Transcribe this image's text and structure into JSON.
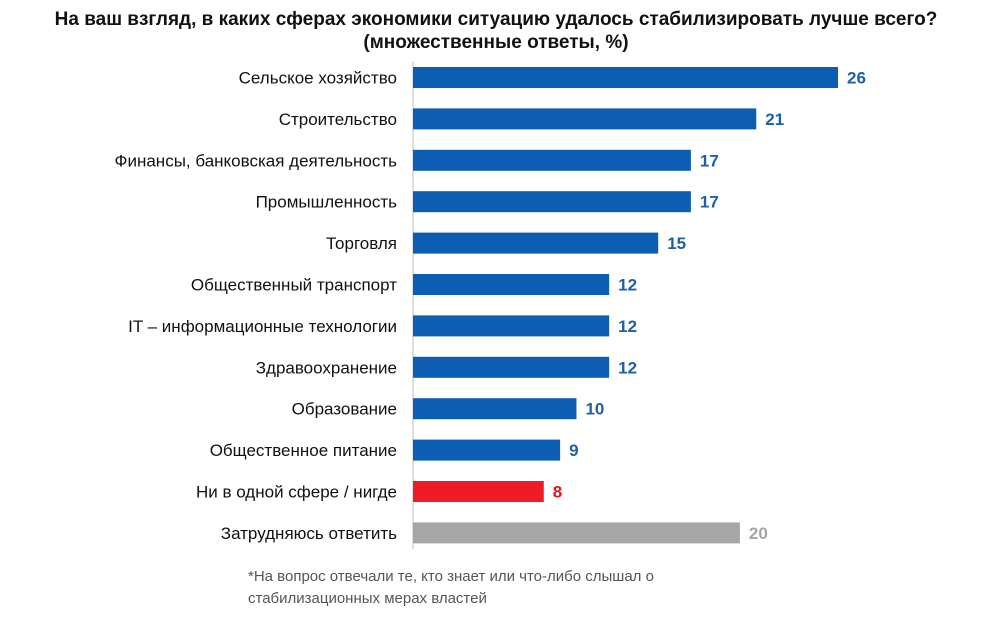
{
  "chart_data": {
    "type": "bar",
    "orientation": "horizontal",
    "title": "На ваш взгляд, в каких сферах экономики ситуацию удалось стабилизировать лучше всего?",
    "subtitle": "(множественные ответы, %)",
    "categories": [
      "Сельское хозяйство",
      "Строительство",
      "Финансы, банковская деятельность",
      "Промышленность",
      "Торговля",
      "Общественный транспорт",
      "IT – информационные технологии",
      "Здравоохранение",
      "Образование",
      "Общественное питание",
      "Ни в одной сфере / нигде",
      "Затрудняюсь ответить"
    ],
    "values": [
      26,
      21,
      17,
      17,
      15,
      12,
      12,
      12,
      10,
      9,
      8,
      20
    ],
    "colors": [
      "#0d5db3",
      "#0d5db3",
      "#0d5db3",
      "#0d5db3",
      "#0d5db3",
      "#0d5db3",
      "#0d5db3",
      "#0d5db3",
      "#0d5db3",
      "#0d5db3",
      "#ee1c25",
      "#a6a6a6"
    ],
    "label_colors": [
      "#1f5fa6",
      "#1f5fa6",
      "#1f5fa6",
      "#1f5fa6",
      "#1f5fa6",
      "#1f5fa6",
      "#1f5fa6",
      "#1f5fa6",
      "#1f5fa6",
      "#1f5fa6",
      "#e3141d",
      "#a6a6a6"
    ],
    "xlim": [
      0,
      26
    ],
    "xlabel": "",
    "ylabel": "",
    "grid": false,
    "legend": "none"
  },
  "footnote": {
    "line1": "*На вопрос отвечали те, кто знает или что-либо слышал о",
    "line2": "стабилизационных мерах властей"
  }
}
